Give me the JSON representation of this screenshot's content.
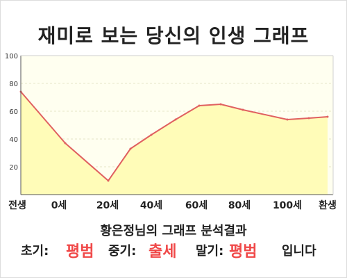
{
  "page": {
    "title": "재미로 보는 당신의 인생 그래프",
    "subtitle": "황은정님의 그래프 분석결과"
  },
  "result": {
    "early_label": "초기:",
    "early_value": "평범",
    "middle_label": "중기:",
    "middle_value": "출세",
    "late_label": "말기:",
    "late_value": "평범",
    "ending": "입니다",
    "highlight_color": "#f04848"
  },
  "chart_data": {
    "type": "area",
    "title": "",
    "xlabel": "",
    "ylabel": "",
    "ylim": [
      0,
      100
    ],
    "yticks": [
      20,
      40,
      60,
      80,
      100
    ],
    "x_tick_labels": [
      "전생",
      "0세",
      "20세",
      "40세",
      "60세",
      "80세",
      "100세",
      "환생"
    ],
    "x": [
      "전생",
      "0세",
      "20세",
      "30세",
      "40세",
      "50세",
      "60세",
      "70세",
      "80세",
      "100세",
      "110세",
      "환생"
    ],
    "values": [
      74,
      37,
      10,
      33,
      43,
      54,
      64,
      65,
      61,
      54,
      55,
      56
    ],
    "grid": true,
    "line_color": "#e06060",
    "fill_color": "#fffcb8",
    "plot_bg": "#fffff0"
  }
}
